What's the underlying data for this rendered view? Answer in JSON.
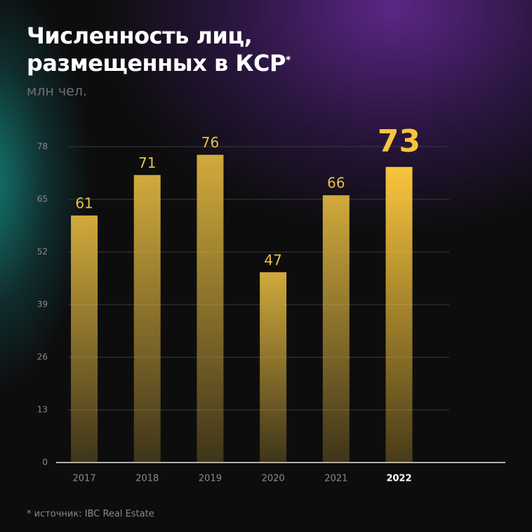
{
  "title": [
    "Численность лиц,",
    "размещенных в КСР"
  ],
  "title_mark": "*",
  "subtitle": "млн чел.",
  "footnote": "* источник: IBC Real Estate",
  "chart_data": {
    "type": "bar",
    "categories": [
      "2017",
      "2018",
      "2019",
      "2020",
      "2021",
      "2022"
    ],
    "values": [
      61,
      71,
      76,
      47,
      66,
      73
    ],
    "colors": [
      "#d1aa3c",
      "#d1aa3c",
      "#d1aa3c",
      "#d1aa3c",
      "#d1aa3c",
      "#f8c53c"
    ],
    "ylim": [
      0,
      78
    ],
    "yticks": [
      0,
      13,
      26,
      39,
      52,
      65,
      78
    ],
    "grid": true
  }
}
